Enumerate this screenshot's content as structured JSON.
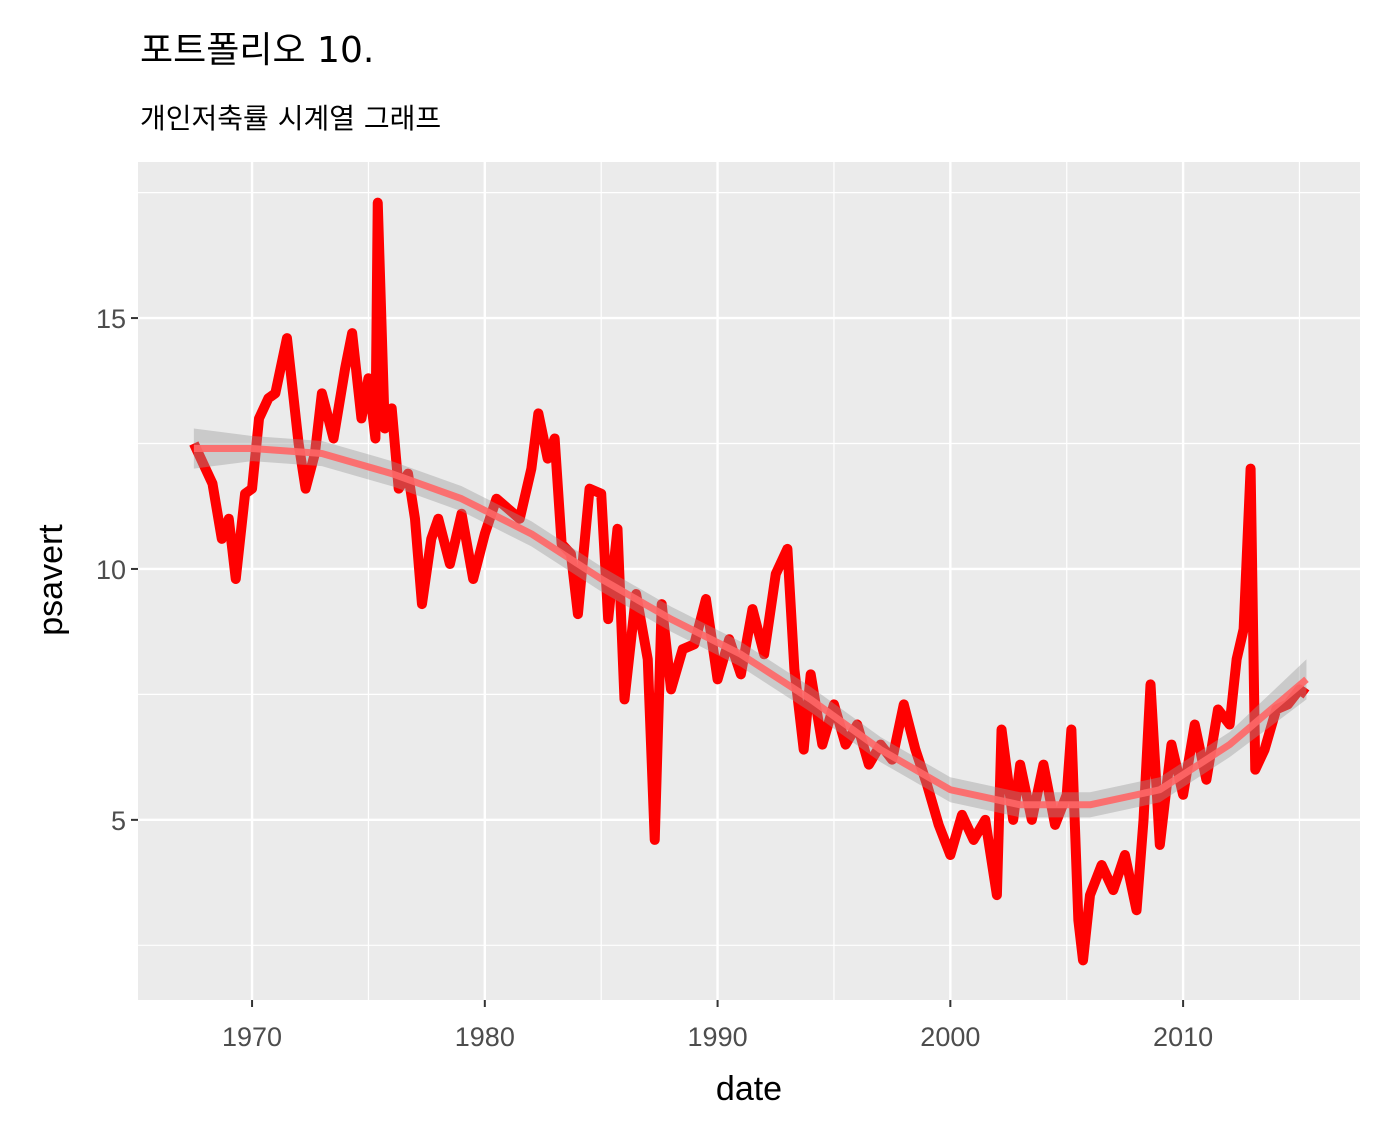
{
  "chart_data": {
    "type": "line",
    "title": "포트폴리오 10.",
    "subtitle": "개인저축률 시계열 그래프",
    "x_label": "date",
    "y_label": "psavert",
    "color": "#ff0000",
    "x": [
      1967.5,
      1968,
      1968.3,
      1968.7,
      1969,
      1969.3,
      1969.7,
      1970,
      1970.3,
      1970.7,
      1971,
      1971.5,
      1972,
      1972.3,
      1972.7,
      1973,
      1973.5,
      1974,
      1974.3,
      1974.7,
      1975,
      1975.3,
      1975.4,
      1975.7,
      1976,
      1976.3,
      1976.7,
      1977,
      1977.3,
      1977.7,
      1978,
      1978.5,
      1979,
      1979.5,
      1980,
      1980.5,
      1981,
      1981.5,
      1982,
      1982.3,
      1982.7,
      1983,
      1983.3,
      1983.7,
      1984,
      1984.5,
      1985,
      1985.3,
      1985.7,
      1986,
      1986.5,
      1987,
      1987.3,
      1987.6,
      1988,
      1988.5,
      1989,
      1989.5,
      1990,
      1990.5,
      1991,
      1991.5,
      1992,
      1992.5,
      1993,
      1993.3,
      1993.7,
      1994,
      1994.5,
      1995,
      1995.5,
      1996,
      1996.5,
      1997,
      1997.5,
      1998,
      1998.5,
      1999,
      1999.5,
      2000,
      2000.5,
      2001,
      2001.5,
      2002,
      2002.2,
      2002.7,
      2003,
      2003.5,
      2004,
      2004.5,
      2005,
      2005.2,
      2005.5,
      2005.7,
      2006,
      2006.5,
      2007,
      2007.5,
      2008,
      2008.3,
      2008.6,
      2009,
      2009.5,
      2010,
      2010.5,
      2011,
      2011.5,
      2012,
      2012.3,
      2012.6,
      2012.9,
      2013.1,
      2013.5,
      2014,
      2014.5,
      2015,
      2015.3
    ],
    "values": [
      12.5,
      12.0,
      11.7,
      10.6,
      11.0,
      9.8,
      11.5,
      11.6,
      13.0,
      13.4,
      13.5,
      14.6,
      12.5,
      11.6,
      12.3,
      13.5,
      12.6,
      14.0,
      14.7,
      13.0,
      13.8,
      12.6,
      17.3,
      12.8,
      13.2,
      11.6,
      11.9,
      11.0,
      9.3,
      10.6,
      11.0,
      10.1,
      11.1,
      9.8,
      10.7,
      11.4,
      11.2,
      11.0,
      12.0,
      13.1,
      12.2,
      12.6,
      10.5,
      10.3,
      9.1,
      11.6,
      11.5,
      9.0,
      10.8,
      7.4,
      9.5,
      8.2,
      4.6,
      9.3,
      7.6,
      8.4,
      8.5,
      9.4,
      7.8,
      8.6,
      7.9,
      9.2,
      8.3,
      9.9,
      10.4,
      8.0,
      6.4,
      7.9,
      6.5,
      7.3,
      6.5,
      6.9,
      6.1,
      6.5,
      6.2,
      7.3,
      6.4,
      5.7,
      4.9,
      4.3,
      5.1,
      4.6,
      5.0,
      3.5,
      6.8,
      5.0,
      6.1,
      5.0,
      6.1,
      4.9,
      5.5,
      6.8,
      3.0,
      2.2,
      3.5,
      4.1,
      3.6,
      4.3,
      3.2,
      5.0,
      7.7,
      4.5,
      6.5,
      5.5,
      6.9,
      5.8,
      7.2,
      6.9,
      8.2,
      8.8,
      12.0,
      6.0,
      6.4,
      7.2,
      7.3,
      7.6,
      7.5
    ],
    "smooth": {
      "color": "#ff6666",
      "x": [
        1967.5,
        1970,
        1973,
        1976,
        1979,
        1982,
        1985,
        1988,
        1991,
        1994,
        1997,
        2000,
        2003,
        2006,
        2009,
        2012,
        2015.3
      ],
      "values": [
        12.4,
        12.4,
        12.3,
        11.9,
        11.4,
        10.7,
        9.8,
        9.0,
        8.3,
        7.4,
        6.4,
        5.6,
        5.3,
        5.3,
        5.6,
        6.5,
        7.8
      ],
      "lower": [
        12.0,
        12.15,
        12.05,
        11.65,
        11.15,
        10.45,
        9.55,
        8.75,
        8.05,
        7.15,
        6.15,
        5.35,
        5.05,
        5.05,
        5.35,
        6.25,
        7.4
      ],
      "upper": [
        12.8,
        12.65,
        12.55,
        12.15,
        11.65,
        10.95,
        10.05,
        9.25,
        8.55,
        7.65,
        6.65,
        5.85,
        5.55,
        5.55,
        5.85,
        6.75,
        8.2
      ]
    },
    "xlim": [
      1965.1,
      2017.6
    ],
    "ylim": [
      1.41,
      18.11
    ],
    "xticks": [
      1970,
      1980,
      1990,
      2000,
      2010
    ],
    "yticks": [
      5,
      10,
      15
    ],
    "xminor": [
      1975,
      1985,
      1995,
      2005,
      2015
    ],
    "yminor": [
      2.5,
      7.5,
      12.5,
      17.5
    ],
    "grid": true
  }
}
